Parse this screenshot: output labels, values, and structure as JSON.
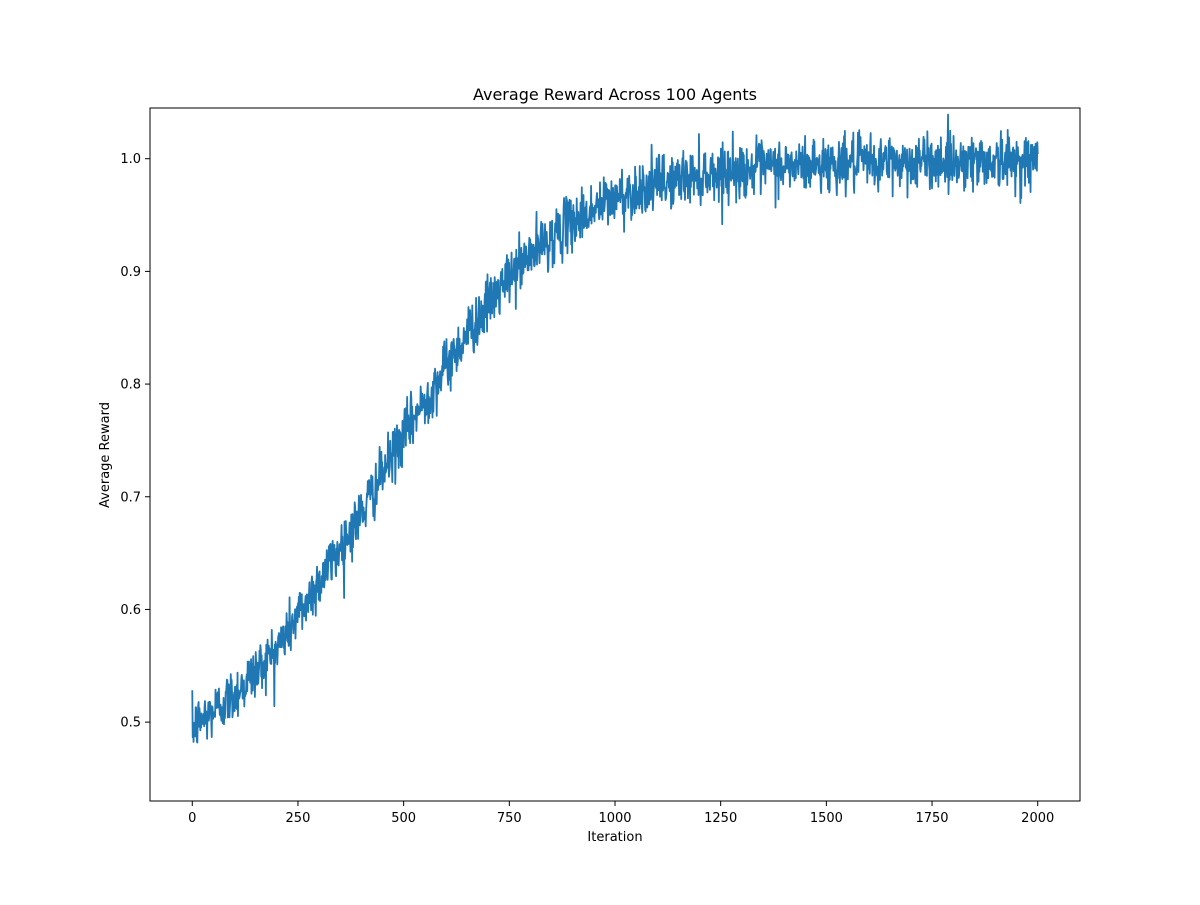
{
  "chart_data": {
    "type": "line",
    "title": "Average Reward Across 100 Agents",
    "xlabel": "Iteration",
    "ylabel": "Average Reward",
    "xlim": [
      -100,
      2100
    ],
    "ylim": [
      0.43,
      1.045
    ],
    "x_ticks": [
      0,
      250,
      500,
      750,
      1000,
      1250,
      1500,
      1750,
      2000
    ],
    "x_tick_labels": [
      "0",
      "250",
      "500",
      "750",
      "1000",
      "1250",
      "1500",
      "1750",
      "2000"
    ],
    "y_ticks": [
      0.5,
      0.6,
      0.7,
      0.8,
      0.9,
      1.0
    ],
    "y_tick_labels": [
      "0.5",
      "0.6",
      "0.7",
      "0.8",
      "0.9",
      "1.0"
    ],
    "grid": false,
    "legend": "none",
    "series": [
      {
        "color": "#1f77b4",
        "x": [
          0,
          50,
          100,
          150,
          200,
          250,
          300,
          350,
          400,
          450,
          500,
          550,
          600,
          650,
          700,
          750,
          800,
          850,
          900,
          950,
          1000,
          1050,
          1100,
          1150,
          1200,
          1250,
          1300,
          1350,
          1400,
          1450,
          1500,
          1550,
          1600,
          1650,
          1700,
          1750,
          1800,
          1850,
          1900,
          1950,
          2000
        ],
        "mean": [
          0.495,
          0.51,
          0.525,
          0.545,
          0.565,
          0.595,
          0.625,
          0.655,
          0.685,
          0.72,
          0.755,
          0.785,
          0.815,
          0.845,
          0.87,
          0.895,
          0.915,
          0.93,
          0.945,
          0.955,
          0.965,
          0.972,
          0.978,
          0.982,
          0.986,
          0.988,
          0.99,
          0.992,
          0.993,
          0.994,
          0.995,
          0.996,
          0.996,
          0.997,
          0.997,
          0.998,
          0.998,
          0.998,
          0.998,
          0.998,
          0.999
        ],
        "noise_sd": 0.012,
        "samples": 2000
      }
    ]
  }
}
